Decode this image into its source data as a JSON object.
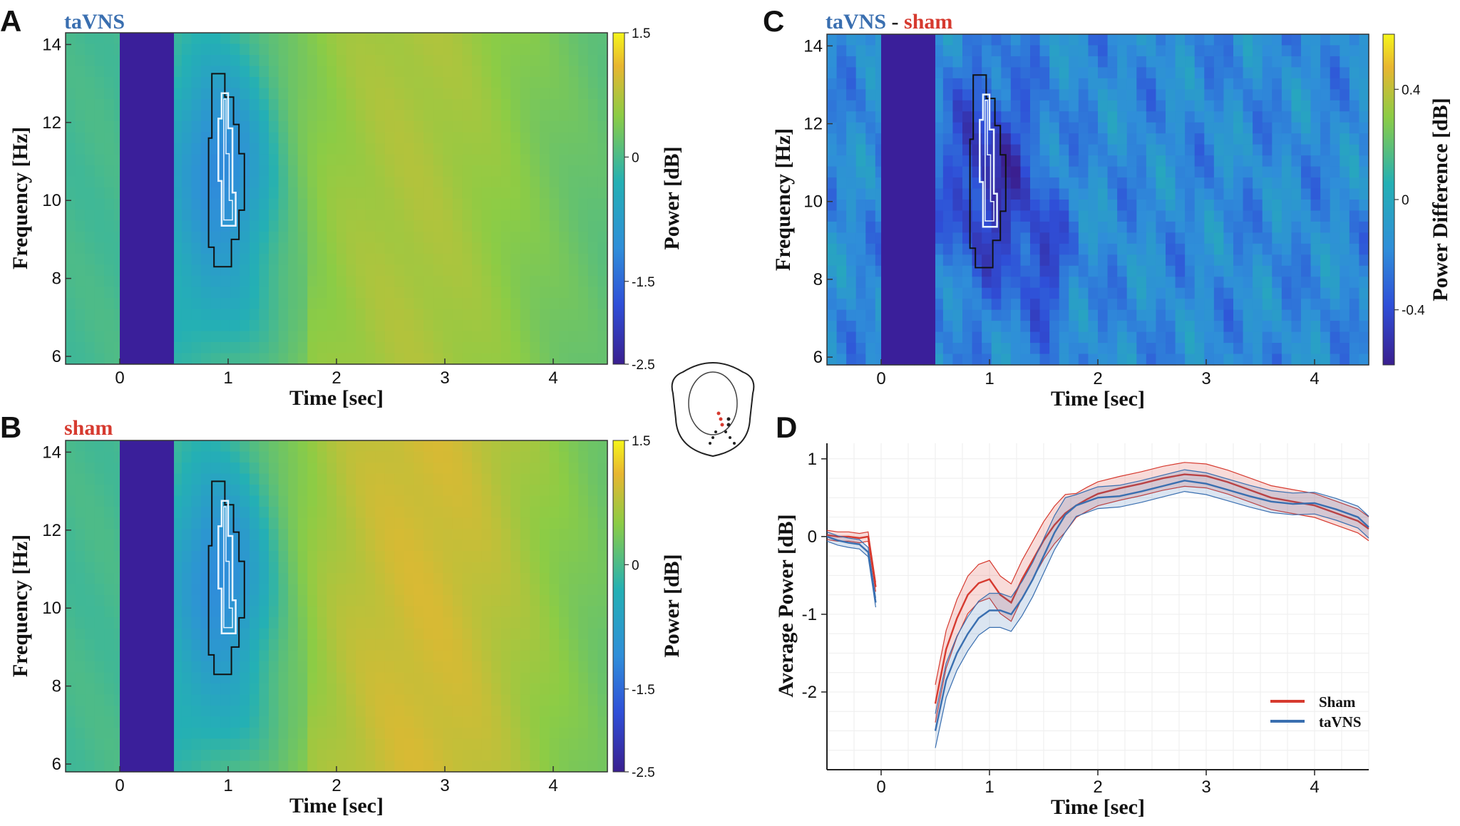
{
  "chart_data": [
    {
      "id": "A",
      "panel_label": "A",
      "type": "heatmap",
      "title": "taVNS",
      "title_color": "#3a6fb0",
      "xlabel": "Time [sec]",
      "ylabel": "Frequency [Hz]",
      "xlim": [
        -0.5,
        4.5
      ],
      "ylim": [
        5.8,
        14.3
      ],
      "xticks": [
        "0",
        "1",
        "2",
        "3",
        "4"
      ],
      "yticks": [
        "6",
        "8",
        "10",
        "12",
        "14"
      ],
      "colorbar": {
        "label": "Power [dB]",
        "range": [
          -2.5,
          1.5
        ],
        "ticks": [
          "1.5",
          "0",
          "-1.5",
          "-2.5"
        ]
      },
      "masked_interval": [
        0,
        0.5
      ],
      "peak_time": 2.7,
      "peak_value": 0.75
    },
    {
      "id": "B",
      "panel_label": "B",
      "type": "heatmap",
      "title": "sham",
      "title_color": "#d63a2f",
      "xlabel": "Time [sec]",
      "ylabel": "Frequency [Hz]",
      "xlim": [
        -0.5,
        4.5
      ],
      "ylim": [
        5.8,
        14.3
      ],
      "xticks": [
        "0",
        "1",
        "2",
        "3",
        "4"
      ],
      "yticks": [
        "6",
        "8",
        "10",
        "12",
        "14"
      ],
      "colorbar": {
        "label": "Power [dB]",
        "range": [
          -2.5,
          1.5
        ],
        "ticks": [
          "1.5",
          "0",
          "-1.5",
          "-2.5"
        ]
      },
      "masked_interval": [
        0,
        0.5
      ],
      "peak_time": 2.8,
      "peak_value": 1.0
    },
    {
      "id": "C",
      "panel_label": "C",
      "type": "heatmap",
      "title_parts": [
        "taVNS",
        " - ",
        "sham"
      ],
      "title_colors": [
        "#3a6fb0",
        "#222222",
        "#d63a2f"
      ],
      "xlabel": "Time [sec]",
      "ylabel": "Frequency [Hz]",
      "xlim": [
        -0.5,
        4.5
      ],
      "ylim": [
        5.8,
        14.3
      ],
      "xticks": [
        "0",
        "1",
        "2",
        "3",
        "4"
      ],
      "yticks": [
        "6",
        "8",
        "10",
        "12",
        "14"
      ],
      "colorbar": {
        "label": "Power Difference [dB]",
        "range": [
          -0.6,
          0.6
        ],
        "ticks": [
          "0.4",
          "0",
          "-0.4"
        ]
      },
      "masked_interval": [
        0,
        0.5
      ]
    },
    {
      "id": "D",
      "panel_label": "D",
      "type": "line",
      "xlabel": "Time [sec]",
      "ylabel": "Average Power [dB]",
      "xlim": [
        -0.5,
        4.5
      ],
      "ylim": [
        -3.0,
        1.2
      ],
      "xticks": [
        "0",
        "1",
        "2",
        "3",
        "4"
      ],
      "yticks": [
        "1",
        "0",
        "-1",
        "-2"
      ],
      "legend_position": "bottom-right",
      "series": [
        {
          "name": "Sham",
          "color": "#d63a2f",
          "segments": [
            {
              "x": [
                -0.5,
                -0.4,
                -0.3,
                -0.2,
                -0.12,
                -0.05
              ],
              "y": [
                0.02,
                0.0,
                0.0,
                -0.02,
                0.0,
                -0.65
              ]
            },
            {
              "x": [
                0.5,
                0.6,
                0.7,
                0.8,
                0.9,
                1.0,
                1.1,
                1.2,
                1.3,
                1.4,
                1.5,
                1.6,
                1.7,
                1.8,
                1.9,
                2.0,
                2.2,
                2.4,
                2.6,
                2.8,
                3.0,
                3.2,
                3.4,
                3.6,
                3.8,
                4.0,
                4.2,
                4.4,
                4.5
              ],
              "y": [
                -2.15,
                -1.45,
                -1.05,
                -0.75,
                -0.6,
                -0.55,
                -0.75,
                -0.85,
                -0.55,
                -0.3,
                -0.05,
                0.15,
                0.3,
                0.4,
                0.48,
                0.55,
                0.62,
                0.68,
                0.75,
                0.8,
                0.78,
                0.7,
                0.6,
                0.5,
                0.45,
                0.4,
                0.3,
                0.2,
                0.1
              ]
            }
          ]
        },
        {
          "name": "taVNS",
          "color": "#3a6fb0",
          "segments": [
            {
              "x": [
                -0.5,
                -0.4,
                -0.3,
                -0.2,
                -0.12,
                -0.05
              ],
              "y": [
                0.0,
                -0.05,
                -0.08,
                -0.1,
                -0.2,
                -0.85
              ]
            },
            {
              "x": [
                0.5,
                0.6,
                0.7,
                0.8,
                0.9,
                1.0,
                1.1,
                1.2,
                1.3,
                1.4,
                1.5,
                1.6,
                1.7,
                1.8,
                1.9,
                2.0,
                2.2,
                2.4,
                2.6,
                2.8,
                3.0,
                3.2,
                3.4,
                3.6,
                3.8,
                4.0,
                4.2,
                4.4,
                4.5
              ],
              "y": [
                -2.5,
                -1.85,
                -1.5,
                -1.25,
                -1.05,
                -0.95,
                -0.95,
                -1.0,
                -0.8,
                -0.55,
                -0.25,
                0.05,
                0.28,
                0.4,
                0.45,
                0.5,
                0.52,
                0.58,
                0.65,
                0.72,
                0.68,
                0.6,
                0.52,
                0.45,
                0.42,
                0.43,
                0.35,
                0.25,
                0.12
              ]
            }
          ]
        }
      ]
    }
  ]
}
